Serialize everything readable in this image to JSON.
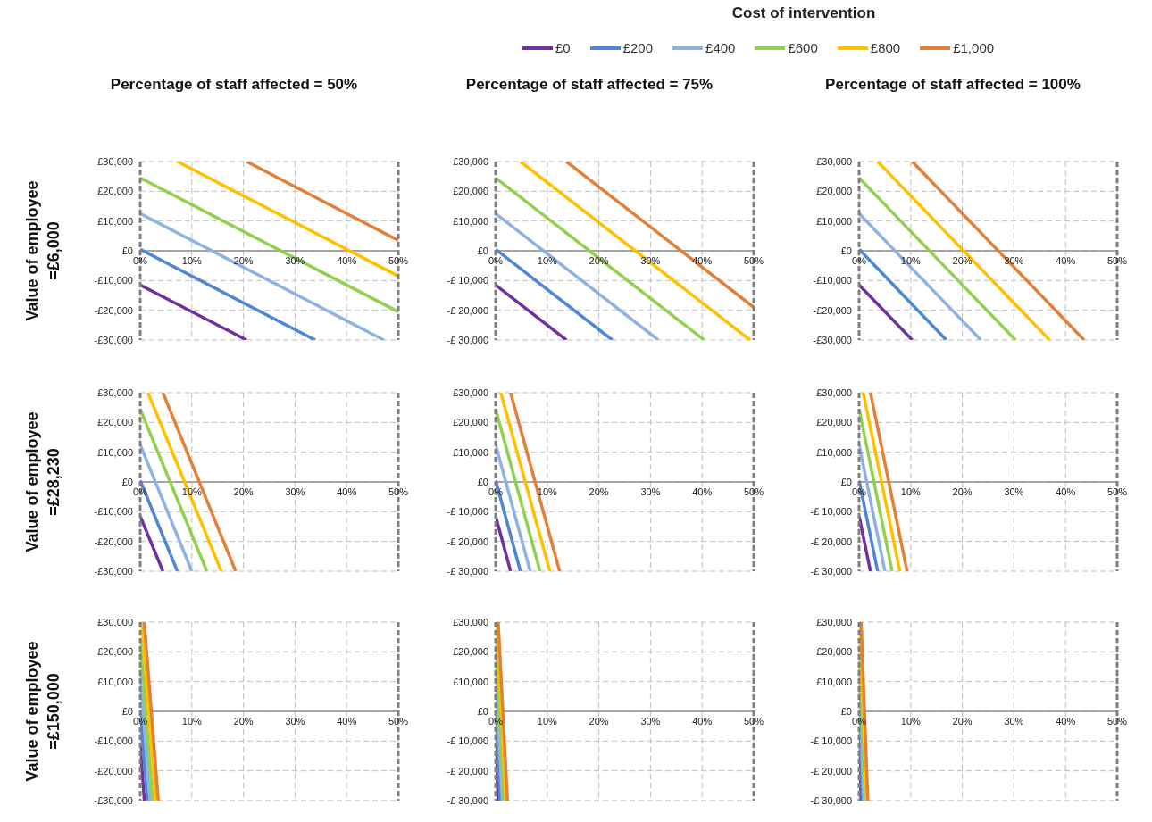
{
  "chart_data": [
    {
      "type": "line",
      "title": "Percentage of staff affected = 50%",
      "ylabel": "Value of employee =£6,000",
      "legend_title": "Cost of intervention",
      "legend": "top",
      "grid": true,
      "marker": "none",
      "line_style": "solid",
      "xlim": [
        0,
        50
      ],
      "xticks": [
        {
          "value": 0,
          "label": "0%"
        },
        {
          "value": 10,
          "label": "10%"
        },
        {
          "value": 20,
          "label": "20%"
        },
        {
          "value": 30,
          "label": "30%"
        },
        {
          "value": 40,
          "label": "40%"
        },
        {
          "value": 50,
          "label": "50%"
        }
      ],
      "ylim": [
        -30000,
        30000
      ],
      "yticks": [
        {
          "value": -30000,
          "label": "-£30,000"
        },
        {
          "value": -20000,
          "label": "-£20,000"
        },
        {
          "value": -10000,
          "label": "-£10,000"
        },
        {
          "value": 0,
          "label": "£0"
        },
        {
          "value": 10000,
          "label": "£10,000"
        },
        {
          "value": 20000,
          "label": "£20,000"
        },
        {
          "value": 30000,
          "label": "£30,000"
        }
      ],
      "series": [
        {
          "name": "£0",
          "color": "#7030a0",
          "x": [
            0,
            20.6
          ],
          "values": [
            -11500,
            -30000
          ]
        },
        {
          "name": "£200",
          "color": "#4f86d6",
          "x": [
            0,
            33.9
          ],
          "values": [
            500,
            -30000
          ]
        },
        {
          "name": "£400",
          "color": "#8db3e2",
          "x": [
            0,
            47.2
          ],
          "values": [
            12500,
            -30000
          ]
        },
        {
          "name": "£600",
          "color": "#92d050",
          "x": [
            0,
            50
          ],
          "values": [
            24500,
            -20500
          ]
        },
        {
          "name": "£800",
          "color": "#ffc000",
          "x": [
            7.2,
            50
          ],
          "values": [
            30000,
            -8500
          ]
        },
        {
          "name": "£1,000",
          "color": "#e2803a",
          "x": [
            20.6,
            50
          ],
          "values": [
            30000,
            3500
          ]
        }
      ]
    },
    {
      "type": "line",
      "title": "Percentage of staff affected = 75%",
      "grid": true,
      "marker": "none",
      "line_style": "solid",
      "xlim": [
        0,
        50
      ],
      "xticks": [
        {
          "value": 0,
          "label": "0%"
        },
        {
          "value": 10,
          "label": "10%"
        },
        {
          "value": 20,
          "label": "20%"
        },
        {
          "value": 30,
          "label": "30%"
        },
        {
          "value": 40,
          "label": "40%"
        },
        {
          "value": 50,
          "label": "50%"
        }
      ],
      "ylim": [
        -30000,
        30000
      ],
      "yticks": [
        {
          "value": -30000,
          "label": "-£ 30,000"
        },
        {
          "value": -20000,
          "label": "-£ 20,000"
        },
        {
          "value": -10000,
          "label": "-£ 10,000"
        },
        {
          "value": 0,
          "label": "£0"
        },
        {
          "value": 10000,
          "label": "£10,000"
        },
        {
          "value": 20000,
          "label": "£20,000"
        },
        {
          "value": 30000,
          "label": "£30,000"
        }
      ],
      "series": [
        {
          "color": "#7030a0",
          "x": [
            0,
            13.7
          ],
          "values": [
            -11500,
            -30000
          ]
        },
        {
          "color": "#4f86d6",
          "x": [
            0,
            22.6
          ],
          "values": [
            500,
            -30000
          ]
        },
        {
          "color": "#8db3e2",
          "x": [
            0,
            31.5
          ],
          "values": [
            12500,
            -30000
          ]
        },
        {
          "color": "#92d050",
          "x": [
            0,
            40.4
          ],
          "values": [
            24500,
            -30000
          ]
        },
        {
          "color": "#ffc000",
          "x": [
            4.8,
            49.3
          ],
          "values": [
            30000,
            -30000
          ]
        },
        {
          "color": "#e2803a",
          "x": [
            13.7,
            50
          ],
          "values": [
            30000,
            -19000
          ]
        }
      ]
    },
    {
      "type": "line",
      "title": "Percentage of staff affected = 100%",
      "grid": true,
      "marker": "none",
      "line_style": "solid",
      "xlim": [
        0,
        50
      ],
      "xticks": [
        {
          "value": 0,
          "label": "0%"
        },
        {
          "value": 10,
          "label": "10%"
        },
        {
          "value": 20,
          "label": "20%"
        },
        {
          "value": 30,
          "label": "30%"
        },
        {
          "value": 40,
          "label": "40%"
        },
        {
          "value": 50,
          "label": "50%"
        }
      ],
      "ylim": [
        -30000,
        30000
      ],
      "yticks": [
        {
          "value": -30000,
          "label": "-£30,000"
        },
        {
          "value": -20000,
          "label": "-£20,000"
        },
        {
          "value": -10000,
          "label": "-£10,000"
        },
        {
          "value": 0,
          "label": "£0"
        },
        {
          "value": 10000,
          "label": "£10,000"
        },
        {
          "value": 20000,
          "label": "£20,000"
        },
        {
          "value": 30000,
          "label": "£30,000"
        }
      ],
      "series": [
        {
          "color": "#7030a0",
          "x": [
            0,
            10.3
          ],
          "values": [
            -11500,
            -30000
          ]
        },
        {
          "color": "#4f86d6",
          "x": [
            0,
            16.9
          ],
          "values": [
            500,
            -30000
          ]
        },
        {
          "color": "#8db3e2",
          "x": [
            0,
            23.6
          ],
          "values": [
            12500,
            -30000
          ]
        },
        {
          "color": "#92d050",
          "x": [
            0,
            30.3
          ],
          "values": [
            24500,
            -30000
          ]
        },
        {
          "color": "#ffc000",
          "x": [
            3.6,
            36.9
          ],
          "values": [
            30000,
            -30000
          ]
        },
        {
          "color": "#e2803a",
          "x": [
            10.3,
            43.6
          ],
          "values": [
            30000,
            -30000
          ]
        }
      ]
    },
    {
      "type": "line",
      "ylabel": "Value of employee =£28,230",
      "grid": true,
      "marker": "none",
      "line_style": "solid",
      "xlim": [
        0,
        50
      ],
      "xticks": [
        {
          "value": 0,
          "label": "0%"
        },
        {
          "value": 10,
          "label": "10%"
        },
        {
          "value": 20,
          "label": "20%"
        },
        {
          "value": 30,
          "label": "30%"
        },
        {
          "value": 40,
          "label": "40%"
        },
        {
          "value": 50,
          "label": "50%"
        }
      ],
      "ylim": [
        -30000,
        30000
      ],
      "yticks": [
        {
          "value": -30000,
          "label": "-£30,000"
        },
        {
          "value": -20000,
          "label": "-£20,000"
        },
        {
          "value": -10000,
          "label": "-£10,000"
        },
        {
          "value": 0,
          "label": "£0"
        },
        {
          "value": 10000,
          "label": "£10,000"
        },
        {
          "value": 20000,
          "label": "£20,000"
        },
        {
          "value": 30000,
          "label": "£30,000"
        }
      ],
      "series": [
        {
          "color": "#7030a0",
          "x": [
            0,
            4.4
          ],
          "values": [
            -11500,
            -30000
          ]
        },
        {
          "color": "#4f86d6",
          "x": [
            0,
            7.2
          ],
          "values": [
            500,
            -30000
          ]
        },
        {
          "color": "#8db3e2",
          "x": [
            0,
            10
          ],
          "values": [
            12500,
            -30000
          ]
        },
        {
          "color": "#92d050",
          "x": [
            0,
            12.9
          ],
          "values": [
            24500,
            -30000
          ]
        },
        {
          "color": "#ffc000",
          "x": [
            1.5,
            15.7
          ],
          "values": [
            30000,
            -30000
          ]
        },
        {
          "color": "#e2803a",
          "x": [
            4.4,
            18.5
          ],
          "values": [
            30000,
            -30000
          ]
        }
      ]
    },
    {
      "type": "line",
      "grid": true,
      "marker": "none",
      "line_style": "solid",
      "xlim": [
        0,
        50
      ],
      "xticks": [
        {
          "value": 0,
          "label": "0%"
        },
        {
          "value": 10,
          "label": "10%"
        },
        {
          "value": 20,
          "label": "20%"
        },
        {
          "value": 30,
          "label": "30%"
        },
        {
          "value": 40,
          "label": "40%"
        },
        {
          "value": 50,
          "label": "50%"
        }
      ],
      "ylim": [
        -30000,
        30000
      ],
      "yticks": [
        {
          "value": -30000,
          "label": "-£ 30,000"
        },
        {
          "value": -20000,
          "label": "-£ 20,000"
        },
        {
          "value": -10000,
          "label": "-£ 10,000"
        },
        {
          "value": 0,
          "label": "£0"
        },
        {
          "value": 10000,
          "label": "£10,000"
        },
        {
          "value": 20000,
          "label": "£20,000"
        },
        {
          "value": 30000,
          "label": "£30,000"
        }
      ],
      "series": [
        {
          "color": "#7030a0",
          "x": [
            0,
            2.9
          ],
          "values": [
            -11500,
            -30000
          ]
        },
        {
          "color": "#4f86d6",
          "x": [
            0,
            4.8
          ],
          "values": [
            500,
            -30000
          ]
        },
        {
          "color": "#8db3e2",
          "x": [
            0,
            6.7
          ],
          "values": [
            12500,
            -30000
          ]
        },
        {
          "color": "#92d050",
          "x": [
            0,
            8.6
          ],
          "values": [
            24500,
            -30000
          ]
        },
        {
          "color": "#ffc000",
          "x": [
            1,
            10.5
          ],
          "values": [
            30000,
            -30000
          ]
        },
        {
          "color": "#e2803a",
          "x": [
            2.9,
            12.4
          ],
          "values": [
            30000,
            -30000
          ]
        }
      ]
    },
    {
      "type": "line",
      "grid": true,
      "marker": "none",
      "line_style": "solid",
      "xlim": [
        0,
        50
      ],
      "xticks": [
        {
          "value": 0,
          "label": "0%"
        },
        {
          "value": 10,
          "label": "10%"
        },
        {
          "value": 20,
          "label": "20%"
        },
        {
          "value": 30,
          "label": "30%"
        },
        {
          "value": 40,
          "label": "40%"
        },
        {
          "value": 50,
          "label": "50%"
        }
      ],
      "ylim": [
        -30000,
        30000
      ],
      "yticks": [
        {
          "value": -30000,
          "label": "-£ 30,000"
        },
        {
          "value": -20000,
          "label": "-£ 20,000"
        },
        {
          "value": -10000,
          "label": "-£ 10,000"
        },
        {
          "value": 0,
          "label": "£0"
        },
        {
          "value": 10000,
          "label": "£10,000"
        },
        {
          "value": 20000,
          "label": "£20,000"
        },
        {
          "value": 30000,
          "label": "£30,000"
        }
      ],
      "series": [
        {
          "color": "#7030a0",
          "x": [
            0,
            2.2
          ],
          "values": [
            -11500,
            -30000
          ]
        },
        {
          "color": "#4f86d6",
          "x": [
            0,
            3.6
          ],
          "values": [
            500,
            -30000
          ]
        },
        {
          "color": "#8db3e2",
          "x": [
            0,
            5
          ],
          "values": [
            12500,
            -30000
          ]
        },
        {
          "color": "#92d050",
          "x": [
            0,
            6.4
          ],
          "values": [
            24500,
            -30000
          ]
        },
        {
          "color": "#ffc000",
          "x": [
            0.8,
            7.9
          ],
          "values": [
            30000,
            -30000
          ]
        },
        {
          "color": "#e2803a",
          "x": [
            2.2,
            9.3
          ],
          "values": [
            30000,
            -30000
          ]
        }
      ]
    },
    {
      "type": "line",
      "ylabel": "Value of employee =£150,000",
      "grid": true,
      "marker": "none",
      "line_style": "solid",
      "xlim": [
        0,
        50
      ],
      "xticks": [
        {
          "value": 0,
          "label": "0%"
        },
        {
          "value": 10,
          "label": "10%"
        },
        {
          "value": 20,
          "label": "20%"
        },
        {
          "value": 30,
          "label": "30%"
        },
        {
          "value": 40,
          "label": "40%"
        },
        {
          "value": 50,
          "label": "50%"
        }
      ],
      "ylim": [
        -30000,
        30000
      ],
      "yticks": [
        {
          "value": -30000,
          "label": "-£30,000"
        },
        {
          "value": -20000,
          "label": "-£20,000"
        },
        {
          "value": -10000,
          "label": "-£10,000"
        },
        {
          "value": 0,
          "label": "£0"
        },
        {
          "value": 10000,
          "label": "£10,000"
        },
        {
          "value": 20000,
          "label": "£20,000"
        },
        {
          "value": 30000,
          "label": "£30,000"
        }
      ],
      "series": [
        {
          "color": "#7030a0",
          "x": [
            0,
            0.8
          ],
          "values": [
            -11500,
            -30000
          ]
        },
        {
          "color": "#4f86d6",
          "x": [
            0,
            1.4
          ],
          "values": [
            500,
            -30000
          ]
        },
        {
          "color": "#8db3e2",
          "x": [
            0,
            1.9
          ],
          "values": [
            12500,
            -30000
          ]
        },
        {
          "color": "#92d050",
          "x": [
            0,
            2.4
          ],
          "values": [
            24500,
            -30000
          ]
        },
        {
          "color": "#ffc000",
          "x": [
            0.3,
            3
          ],
          "values": [
            30000,
            -30000
          ]
        },
        {
          "color": "#e2803a",
          "x": [
            0.8,
            3.5
          ],
          "values": [
            30000,
            -30000
          ]
        }
      ]
    },
    {
      "type": "line",
      "grid": true,
      "marker": "none",
      "line_style": "solid",
      "xlim": [
        0,
        50
      ],
      "xticks": [
        {
          "value": 0,
          "label": "0%"
        },
        {
          "value": 10,
          "label": "10%"
        },
        {
          "value": 20,
          "label": "20%"
        },
        {
          "value": 30,
          "label": "30%"
        },
        {
          "value": 40,
          "label": "40%"
        },
        {
          "value": 50,
          "label": "50%"
        }
      ],
      "ylim": [
        -30000,
        30000
      ],
      "yticks": [
        {
          "value": -30000,
          "label": "-£ 30,000"
        },
        {
          "value": -20000,
          "label": "-£ 20,000"
        },
        {
          "value": -10000,
          "label": "-£ 10,000"
        },
        {
          "value": 0,
          "label": "£0"
        },
        {
          "value": 10000,
          "label": "£10,000"
        },
        {
          "value": 20000,
          "label": "£20,000"
        },
        {
          "value": 30000,
          "label": "£30,000"
        }
      ],
      "series": [
        {
          "color": "#7030a0",
          "x": [
            0,
            0.5
          ],
          "values": [
            -11500,
            -30000
          ]
        },
        {
          "color": "#4f86d6",
          "x": [
            0,
            0.9
          ],
          "values": [
            500,
            -30000
          ]
        },
        {
          "color": "#8db3e2",
          "x": [
            0,
            1.3
          ],
          "values": [
            12500,
            -30000
          ]
        },
        {
          "color": "#92d050",
          "x": [
            0,
            1.6
          ],
          "values": [
            24500,
            -30000
          ]
        },
        {
          "color": "#ffc000",
          "x": [
            0.2,
            2
          ],
          "values": [
            30000,
            -30000
          ]
        },
        {
          "color": "#e2803a",
          "x": [
            0.5,
            2.3
          ],
          "values": [
            30000,
            -30000
          ]
        }
      ]
    },
    {
      "type": "line",
      "grid": true,
      "marker": "none",
      "line_style": "solid",
      "xlim": [
        0,
        50
      ],
      "xticks": [
        {
          "value": 0,
          "label": "0%"
        },
        {
          "value": 10,
          "label": "10%"
        },
        {
          "value": 20,
          "label": "20%"
        },
        {
          "value": 30,
          "label": "30%"
        },
        {
          "value": 40,
          "label": "40%"
        },
        {
          "value": 50,
          "label": "50%"
        }
      ],
      "ylim": [
        -30000,
        30000
      ],
      "yticks": [
        {
          "value": -30000,
          "label": "-£ 30,000"
        },
        {
          "value": -20000,
          "label": "-£ 20,000"
        },
        {
          "value": -10000,
          "label": "-£ 10,000"
        },
        {
          "value": 0,
          "label": "£0"
        },
        {
          "value": 10000,
          "label": "£10,000"
        },
        {
          "value": 20000,
          "label": "£20,000"
        },
        {
          "value": 30000,
          "label": "£30,000"
        }
      ],
      "series": [
        {
          "color": "#7030a0",
          "x": [
            0,
            0.4
          ],
          "values": [
            -11500,
            -30000
          ]
        },
        {
          "color": "#4f86d6",
          "x": [
            0,
            0.7
          ],
          "values": [
            500,
            -30000
          ]
        },
        {
          "color": "#8db3e2",
          "x": [
            0,
            0.9
          ],
          "values": [
            12500,
            -30000
          ]
        },
        {
          "color": "#92d050",
          "x": [
            0,
            1.2
          ],
          "values": [
            24500,
            -30000
          ]
        },
        {
          "color": "#ffc000",
          "x": [
            0.1,
            1.5
          ],
          "values": [
            30000,
            -30000
          ]
        },
        {
          "color": "#e2803a",
          "x": [
            0.4,
            1.7
          ],
          "values": [
            30000,
            -30000
          ]
        }
      ]
    }
  ]
}
